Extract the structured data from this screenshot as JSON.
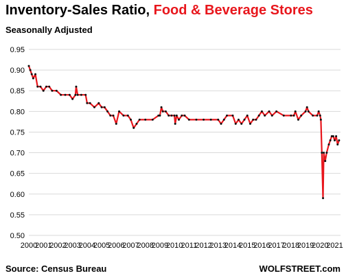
{
  "title": {
    "part1": "Inventory-Sales Ratio,",
    "part2": "Food & Beverage Stores"
  },
  "subtitle": "Seasonally Adjusted",
  "source": "Source: Census Bureau",
  "brand": "WOLFSTREET.com",
  "colors": {
    "line": "#e8161c",
    "markers": "#111111",
    "grid": "#d9d9d9",
    "title_accent": "#e8161c"
  },
  "chart_data": {
    "type": "line",
    "title": "Inventory-Sales Ratio, Food & Beverage Stores",
    "subtitle": "Seasonally Adjusted",
    "xlabel": "",
    "ylabel": "",
    "ylim": [
      0.5,
      0.95
    ],
    "xlim": [
      2000,
      2021.4
    ],
    "grid": true,
    "y_ticks": [
      "0.50",
      "0.55",
      "0.60",
      "0.65",
      "0.70",
      "0.75",
      "0.80",
      "0.85",
      "0.90",
      "0.95"
    ],
    "x_ticks": [
      "2000",
      "2001",
      "2002",
      "2003",
      "2004",
      "2005",
      "2006",
      "2007",
      "2008",
      "2009",
      "2010",
      "2011",
      "2012",
      "2013",
      "2014",
      "2015",
      "2016",
      "2017",
      "2018",
      "2019",
      "2020",
      "2021"
    ],
    "series": [
      {
        "values_x": [
          2000.0,
          2000.1,
          2000.2,
          2000.3,
          2000.45,
          2000.6,
          2000.8,
          2001.0,
          2001.2,
          2001.4,
          2001.6,
          2001.9,
          2002.2,
          2002.5,
          2002.8,
          2003.0,
          2003.2,
          2003.25,
          2003.35,
          2003.6,
          2003.9,
          2004.0,
          2004.2,
          2004.5,
          2004.8,
          2005.0,
          2005.2,
          2005.4,
          2005.6,
          2005.8,
          2006.0,
          2006.2,
          2006.5,
          2006.8,
          2007.0,
          2007.2,
          2007.4,
          2007.6,
          2008.0,
          2008.5,
          2008.9,
          2009.0,
          2009.1,
          2009.2,
          2009.4,
          2009.6,
          2009.8,
          2010.0,
          2010.05,
          2010.15,
          2010.3,
          2010.5,
          2010.7,
          2011.0,
          2011.5,
          2012.0,
          2012.5,
          2013.0,
          2013.2,
          2013.4,
          2013.6,
          2014.0,
          2014.2,
          2014.4,
          2014.6,
          2014.8,
          2015.0,
          2015.2,
          2015.4,
          2015.6,
          2015.8,
          2016.0,
          2016.2,
          2016.5,
          2016.7,
          2017.0,
          2017.5,
          2018.0,
          2018.2,
          2018.3,
          2018.5,
          2018.7,
          2019.0,
          2019.1,
          2019.2,
          2019.5,
          2019.8,
          2019.9,
          2020.0,
          2020.05,
          2020.12,
          2020.2,
          2020.25,
          2020.35,
          2020.45,
          2020.6,
          2020.7,
          2020.8,
          2020.9,
          2021.0,
          2021.1,
          2021.2,
          2021.3
        ],
        "values_y": [
          0.91,
          0.9,
          0.89,
          0.88,
          0.89,
          0.86,
          0.86,
          0.85,
          0.86,
          0.86,
          0.85,
          0.85,
          0.84,
          0.84,
          0.84,
          0.83,
          0.84,
          0.86,
          0.84,
          0.84,
          0.84,
          0.82,
          0.82,
          0.81,
          0.82,
          0.81,
          0.81,
          0.8,
          0.79,
          0.79,
          0.77,
          0.8,
          0.79,
          0.79,
          0.78,
          0.76,
          0.77,
          0.78,
          0.78,
          0.78,
          0.79,
          0.79,
          0.81,
          0.8,
          0.8,
          0.79,
          0.79,
          0.79,
          0.77,
          0.79,
          0.78,
          0.79,
          0.79,
          0.78,
          0.78,
          0.78,
          0.78,
          0.78,
          0.77,
          0.78,
          0.79,
          0.79,
          0.77,
          0.78,
          0.77,
          0.78,
          0.79,
          0.77,
          0.78,
          0.78,
          0.79,
          0.8,
          0.79,
          0.8,
          0.79,
          0.8,
          0.79,
          0.79,
          0.79,
          0.8,
          0.78,
          0.79,
          0.8,
          0.81,
          0.8,
          0.79,
          0.79,
          0.8,
          0.79,
          0.78,
          0.7,
          0.59,
          0.7,
          0.68,
          0.7,
          0.72,
          0.73,
          0.74,
          0.74,
          0.73,
          0.74,
          0.72,
          0.73
        ]
      }
    ]
  }
}
